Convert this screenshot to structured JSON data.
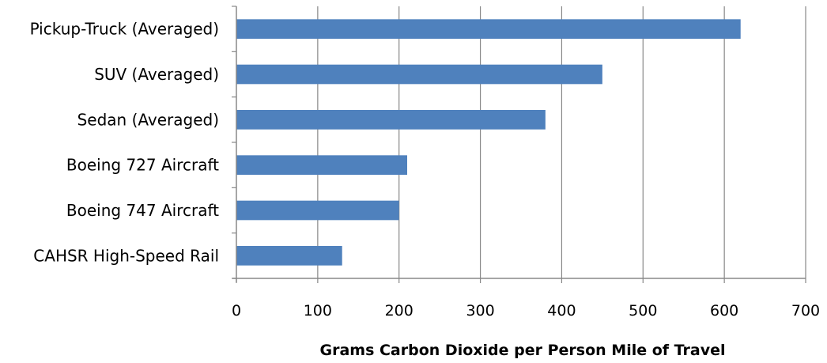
{
  "chart_data": {
    "type": "bar",
    "orientation": "horizontal",
    "categories": [
      "Pickup-Truck (Averaged)",
      "SUV (Averaged)",
      "Sedan (Averaged)",
      "Boeing 727 Aircraft",
      "Boeing 747 Aircraft",
      "CAHSR High-Speed Rail"
    ],
    "values": [
      620,
      450,
      380,
      210,
      200,
      130
    ],
    "xlabel": "Grams Carbon Dioxide per Person Mile of Travel",
    "ylabel": "",
    "title": "",
    "xlim": [
      0,
      700
    ],
    "xticks": [
      0,
      100,
      200,
      300,
      400,
      500,
      600,
      700
    ],
    "xtick_labels": [
      "0",
      "100",
      "200",
      "300",
      "400",
      "500",
      "600",
      "700"
    ],
    "grid": "vertical",
    "legend": "none",
    "bar_color": "#4f81bd",
    "grid_color": "#888888"
  }
}
